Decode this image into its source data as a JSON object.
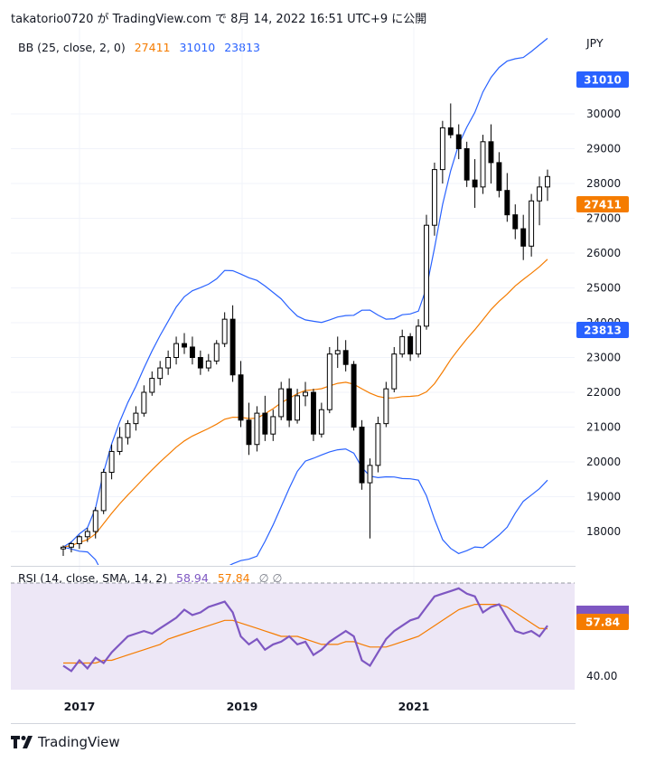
{
  "header": {
    "title": "takatorio0720 が TradingView.com で 8月 14, 2022 16:51 UTC+9 に公開"
  },
  "brand": {
    "name": "TradingView"
  },
  "colors": {
    "upper": "#2962ff",
    "lower": "#2962ff",
    "basis": "#f57c00",
    "rsi": "#7e57c2",
    "rsi_ma": "#f57c00",
    "rsi_bg": "#ede7f6",
    "candle": "#000000"
  },
  "chart_data": {
    "type": "candlestick",
    "currency_label": "JPY",
    "y_ticks": [
      18000,
      19000,
      20000,
      21000,
      22000,
      23000,
      24000,
      25000,
      26000,
      27000,
      28000,
      29000,
      30000
    ],
    "x_ticks": [
      "2017",
      "2019",
      "2021"
    ],
    "indicator_legend": {
      "name": "BB (25, close, 2, 0)",
      "basis": "27411",
      "upper": "31010",
      "lower": "23813"
    },
    "price_badges": {
      "upper": "31010",
      "basis": "27411",
      "lower": "23813"
    },
    "candles": [
      [
        17500,
        17600,
        17300,
        17550
      ],
      [
        17550,
        17700,
        17400,
        17650
      ],
      [
        17650,
        17900,
        17500,
        17850
      ],
      [
        17850,
        18100,
        17700,
        18000
      ],
      [
        18000,
        18700,
        17800,
        18600
      ],
      [
        18600,
        19800,
        18500,
        19700
      ],
      [
        19700,
        20500,
        19500,
        20300
      ],
      [
        20300,
        21000,
        20200,
        20700
      ],
      [
        20700,
        21200,
        20500,
        21100
      ],
      [
        21100,
        21600,
        20900,
        21400
      ],
      [
        21400,
        22200,
        21300,
        22000
      ],
      [
        22000,
        22600,
        21900,
        22400
      ],
      [
        22400,
        22900,
        22200,
        22700
      ],
      [
        22700,
        23200,
        22500,
        23000
      ],
      [
        23000,
        23600,
        22800,
        23400
      ],
      [
        23400,
        23700,
        23100,
        23300
      ],
      [
        23300,
        23600,
        22800,
        23000
      ],
      [
        23000,
        23200,
        22500,
        22700
      ],
      [
        22700,
        23100,
        22600,
        22900
      ],
      [
        22900,
        23500,
        22800,
        23400
      ],
      [
        23400,
        24300,
        23300,
        24100
      ],
      [
        24100,
        24500,
        22300,
        22500
      ],
      [
        22500,
        22900,
        21000,
        21200
      ],
      [
        21200,
        21700,
        20200,
        20500
      ],
      [
        20500,
        21600,
        20300,
        21400
      ],
      [
        21400,
        21900,
        20600,
        20800
      ],
      [
        20800,
        21500,
        20600,
        21300
      ],
      [
        21300,
        22300,
        21200,
        22100
      ],
      [
        22100,
        22400,
        21000,
        21200
      ],
      [
        21200,
        22100,
        21100,
        21900
      ],
      [
        21900,
        22300,
        21600,
        22000
      ],
      [
        22000,
        22100,
        20600,
        20800
      ],
      [
        20800,
        21700,
        20700,
        21500
      ],
      [
        21500,
        23300,
        21400,
        23100
      ],
      [
        23100,
        23600,
        22700,
        23200
      ],
      [
        23200,
        23500,
        22600,
        22800
      ],
      [
        22800,
        22900,
        20900,
        21000
      ],
      [
        21000,
        21200,
        19200,
        19400
      ],
      [
        19400,
        20100,
        17800,
        19900
      ],
      [
        19900,
        21300,
        19700,
        21100
      ],
      [
        21100,
        22300,
        21000,
        22100
      ],
      [
        22100,
        23300,
        22000,
        23100
      ],
      [
        23100,
        23800,
        23000,
        23600
      ],
      [
        23600,
        23700,
        22900,
        23100
      ],
      [
        23100,
        24100,
        23000,
        23900
      ],
      [
        23900,
        27100,
        23800,
        26800
      ],
      [
        26800,
        28600,
        26500,
        28400
      ],
      [
        28400,
        29800,
        28000,
        29600
      ],
      [
        29600,
        30300,
        29300,
        29400
      ],
      [
        29400,
        29700,
        28700,
        29000
      ],
      [
        29000,
        29200,
        27900,
        28100
      ],
      [
        28100,
        28700,
        27300,
        27900
      ],
      [
        27900,
        29400,
        27700,
        29200
      ],
      [
        29200,
        29700,
        28000,
        28600
      ],
      [
        28600,
        28900,
        27600,
        27800
      ],
      [
        27800,
        28300,
        26900,
        27100
      ],
      [
        27100,
        27400,
        26400,
        26700
      ],
      [
        26700,
        27100,
        25800,
        26200
      ],
      [
        26200,
        27700,
        25900,
        27500
      ],
      [
        27500,
        28200,
        26800,
        27900
      ],
      [
        27900,
        28400,
        27500,
        28200
      ]
    ],
    "rsi": {
      "label": "RSI (14, close, SMA, 14, 2)",
      "value": "58.94",
      "ma_value": "57.84",
      "extra": "∅ ∅",
      "y_tick": "40.00",
      "badge": "57.84",
      "ylim": [
        35,
        75
      ],
      "values": [
        44,
        42,
        46,
        43,
        47,
        45,
        49,
        52,
        55,
        56,
        57,
        56,
        58,
        60,
        62,
        65,
        63,
        64,
        66,
        67,
        68,
        64,
        55,
        52,
        54,
        50,
        52,
        53,
        55,
        52,
        53,
        48,
        50,
        53,
        55,
        57,
        55,
        46,
        44,
        49,
        54,
        57,
        59,
        61,
        62,
        66,
        70,
        71,
        72,
        73,
        71,
        70,
        64,
        66,
        67,
        62,
        57,
        56,
        57,
        55,
        59
      ],
      "ma_values": [
        45,
        45,
        45,
        45,
        45,
        46,
        46,
        47,
        48,
        49,
        50,
        51,
        52,
        54,
        55,
        56,
        57,
        58,
        59,
        60,
        61,
        61,
        60,
        59,
        58,
        57,
        56,
        55,
        55,
        55,
        54,
        53,
        52,
        52,
        52,
        53,
        53,
        52,
        51,
        51,
        51,
        52,
        53,
        54,
        55,
        57,
        59,
        61,
        63,
        65,
        66,
        67,
        67,
        67,
        67,
        66,
        64,
        62,
        60,
        58,
        57.84
      ]
    }
  }
}
